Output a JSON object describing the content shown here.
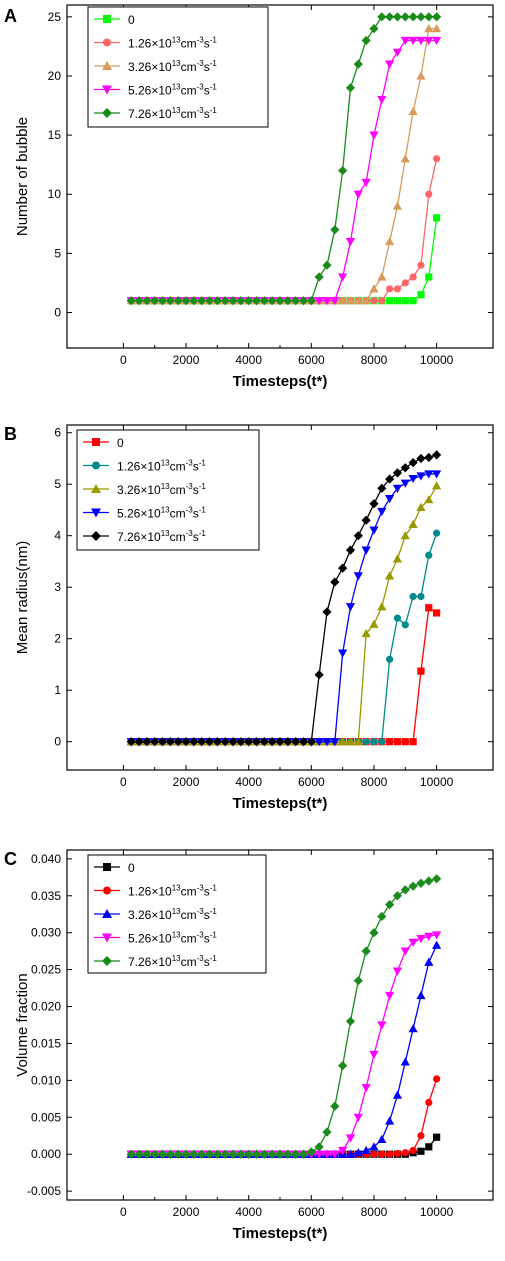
{
  "legend_labels": [
    {
      "base": "0",
      "sci": false
    },
    {
      "base": "1.26",
      "sci": true,
      "exp": "13",
      "unit1": "cm",
      "exp2": "-3",
      "unit2": "s",
      "exp3": "-1"
    },
    {
      "base": "3.26",
      "sci": true,
      "exp": "13",
      "unit1": "cm",
      "exp2": "-3",
      "unit2": "s",
      "exp3": "-1"
    },
    {
      "base": "5.26",
      "sci": true,
      "exp": "13",
      "unit1": "cm",
      "exp2": "-3",
      "unit2": "s",
      "exp3": "-1"
    },
    {
      "base": "7.26",
      "sci": true,
      "exp": "13",
      "unit1": "cm",
      "exp2": "-3",
      "unit2": "s",
      "exp3": "-1"
    }
  ],
  "times_symbol": "×",
  "chart_data": [
    {
      "panel_label": "A",
      "type": "line",
      "xlabel": "Timesteps(t*)",
      "ylabel": "Number of bubble",
      "xlim": [
        -1800,
        11800
      ],
      "ylim": [
        -3,
        26
      ],
      "xticks": [
        "0",
        "2000",
        "4000",
        "6000",
        "8000",
        "10000"
      ],
      "xtick_values": [
        0,
        2000,
        4000,
        6000,
        8000,
        10000
      ],
      "yticks": [
        "0",
        "5",
        "10",
        "15",
        "20",
        "25"
      ],
      "ytick_values": [
        0,
        5,
        10,
        15,
        20,
        25
      ],
      "legend_position": "top-left",
      "x": [
        250,
        500,
        750,
        1000,
        1250,
        1500,
        1750,
        2000,
        2250,
        2500,
        2750,
        3000,
        3250,
        3500,
        3750,
        4000,
        4250,
        4500,
        4750,
        5000,
        5250,
        5500,
        5750,
        6000,
        6250,
        6500,
        6750,
        7000,
        7250,
        7500,
        7750,
        8000,
        8250,
        8500,
        8750,
        9000,
        9250,
        9500,
        9750,
        10000
      ],
      "series": [
        {
          "legend_index": 0,
          "color": "#00ff00",
          "marker": "square",
          "values": [
            1,
            1,
            1,
            1,
            1,
            1,
            1,
            1,
            1,
            1,
            1,
            1,
            1,
            1,
            1,
            1,
            1,
            1,
            1,
            1,
            1,
            1,
            1,
            1,
            1,
            1,
            1,
            1,
            1,
            1,
            1,
            1,
            1,
            1,
            1,
            1,
            1,
            1.5,
            3,
            8
          ]
        },
        {
          "legend_index": 1,
          "color": "#ff6666",
          "marker": "circle",
          "values": [
            1,
            1,
            1,
            1,
            1,
            1,
            1,
            1,
            1,
            1,
            1,
            1,
            1,
            1,
            1,
            1,
            1,
            1,
            1,
            1,
            1,
            1,
            1,
            1,
            1,
            1,
            1,
            1,
            1,
            1,
            1,
            1,
            1,
            2,
            2,
            2.5,
            3,
            4,
            10,
            13
          ]
        },
        {
          "legend_index": 2,
          "color": "#d99a5c",
          "marker": "triangle-up",
          "values": [
            1,
            1,
            1,
            1,
            1,
            1,
            1,
            1,
            1,
            1,
            1,
            1,
            1,
            1,
            1,
            1,
            1,
            1,
            1,
            1,
            1,
            1,
            1,
            1,
            1,
            1,
            1,
            1,
            1,
            1,
            1,
            2,
            3,
            6,
            9,
            13,
            17,
            20,
            24,
            24
          ]
        },
        {
          "legend_index": 3,
          "color": "#ff00ff",
          "marker": "triangle-down",
          "values": [
            1,
            1,
            1,
            1,
            1,
            1,
            1,
            1,
            1,
            1,
            1,
            1,
            1,
            1,
            1,
            1,
            1,
            1,
            1,
            1,
            1,
            1,
            1,
            1,
            1,
            1,
            1,
            3,
            6,
            10,
            11,
            15,
            18,
            21,
            22,
            23,
            23,
            23,
            23,
            23
          ]
        },
        {
          "legend_index": 4,
          "color": "#1a8a1a",
          "marker": "diamond",
          "values": [
            1,
            1,
            1,
            1,
            1,
            1,
            1,
            1,
            1,
            1,
            1,
            1,
            1,
            1,
            1,
            1,
            1,
            1,
            1,
            1,
            1,
            1,
            1,
            1,
            3,
            4,
            7,
            12,
            19,
            21,
            23,
            24,
            25,
            25,
            25,
            25,
            25,
            25,
            25,
            25
          ]
        }
      ]
    },
    {
      "panel_label": "B",
      "type": "line",
      "xlabel": "Timesteps(t*)",
      "ylabel": "Mean radius(nm)",
      "xlim": [
        -1800,
        11800
      ],
      "ylim": [
        -0.55,
        6.15
      ],
      "xticks": [
        "0",
        "2000",
        "4000",
        "6000",
        "8000",
        "10000"
      ],
      "xtick_values": [
        0,
        2000,
        4000,
        6000,
        8000,
        10000
      ],
      "yticks": [
        "0",
        "1",
        "2",
        "3",
        "4",
        "5",
        "6"
      ],
      "ytick_values": [
        0,
        1,
        2,
        3,
        4,
        5,
        6
      ],
      "legend_position": "top-left",
      "x": [
        250,
        500,
        750,
        1000,
        1250,
        1500,
        1750,
        2000,
        2250,
        2500,
        2750,
        3000,
        3250,
        3500,
        3750,
        4000,
        4250,
        4500,
        4750,
        5000,
        5250,
        5500,
        5750,
        6000,
        6250,
        6500,
        6750,
        7000,
        7250,
        7500,
        7750,
        8000,
        8250,
        8500,
        8750,
        9000,
        9250,
        9500,
        9750,
        10000
      ],
      "series": [
        {
          "legend_index": 0,
          "color": "#ff0000",
          "marker": "square",
          "values": [
            0,
            0,
            0,
            0,
            0,
            0,
            0,
            0,
            0,
            0,
            0,
            0,
            0,
            0,
            0,
            0,
            0,
            0,
            0,
            0,
            0,
            0,
            0,
            0,
            0,
            0,
            0,
            0,
            0,
            0,
            0,
            0,
            0,
            0,
            0,
            0,
            0,
            1.37,
            2.6,
            2.5
          ]
        },
        {
          "legend_index": 1,
          "color": "#008b8b",
          "marker": "circle",
          "values": [
            0,
            0,
            0,
            0,
            0,
            0,
            0,
            0,
            0,
            0,
            0,
            0,
            0,
            0,
            0,
            0,
            0,
            0,
            0,
            0,
            0,
            0,
            0,
            0,
            0,
            0,
            0,
            0,
            0,
            0,
            0,
            0,
            0,
            1.6,
            2.4,
            2.27,
            2.82,
            2.82,
            3.62,
            4.05
          ]
        },
        {
          "legend_index": 2,
          "color": "#999900",
          "marker": "triangle-up",
          "values": [
            0,
            0,
            0,
            0,
            0,
            0,
            0,
            0,
            0,
            0,
            0,
            0,
            0,
            0,
            0,
            0,
            0,
            0,
            0,
            0,
            0,
            0,
            0,
            0,
            0,
            0,
            0,
            0,
            0,
            0,
            2.1,
            2.28,
            2.62,
            3.22,
            3.55,
            4.0,
            4.22,
            4.55,
            4.7,
            4.97
          ]
        },
        {
          "legend_index": 3,
          "color": "#0000ff",
          "marker": "triangle-down",
          "values": [
            0,
            0,
            0,
            0,
            0,
            0,
            0,
            0,
            0,
            0,
            0,
            0,
            0,
            0,
            0,
            0,
            0,
            0,
            0,
            0,
            0,
            0,
            0,
            0,
            0,
            0,
            0,
            1.72,
            2.62,
            3.22,
            3.72,
            4.11,
            4.47,
            4.72,
            4.92,
            5.02,
            5.11,
            5.16,
            5.2,
            5.2
          ]
        },
        {
          "legend_index": 4,
          "color": "#000000",
          "marker": "diamond",
          "values": [
            0,
            0,
            0,
            0,
            0,
            0,
            0,
            0,
            0,
            0,
            0,
            0,
            0,
            0,
            0,
            0,
            0,
            0,
            0,
            0,
            0,
            0,
            0,
            0,
            1.3,
            2.52,
            3.1,
            3.37,
            3.72,
            4.0,
            4.3,
            4.62,
            4.92,
            5.1,
            5.22,
            5.32,
            5.42,
            5.5,
            5.52,
            5.57
          ]
        }
      ]
    },
    {
      "panel_label": "C",
      "type": "line",
      "xlabel": "Timesteps(t*)",
      "ylabel": "Volume fraction",
      "xlim": [
        -1800,
        11800
      ],
      "ylim": [
        -0.0062,
        0.0412
      ],
      "xticks": [
        "0",
        "2000",
        "4000",
        "6000",
        "8000",
        "10000"
      ],
      "xtick_values": [
        0,
        2000,
        4000,
        6000,
        8000,
        10000
      ],
      "yticks": [
        "-0.005",
        "0.000",
        "0.005",
        "0.010",
        "0.015",
        "0.020",
        "0.025",
        "0.030",
        "0.035",
        "0.040"
      ],
      "ytick_values": [
        -0.005,
        0,
        0.005,
        0.01,
        0.015,
        0.02,
        0.025,
        0.03,
        0.035,
        0.04
      ],
      "legend_position": "top-left",
      "x": [
        250,
        500,
        750,
        1000,
        1250,
        1500,
        1750,
        2000,
        2250,
        2500,
        2750,
        3000,
        3250,
        3500,
        3750,
        4000,
        4250,
        4500,
        4750,
        5000,
        5250,
        5500,
        5750,
        6000,
        6250,
        6500,
        6750,
        7000,
        7250,
        7500,
        7750,
        8000,
        8250,
        8500,
        8750,
        9000,
        9250,
        9500,
        9750,
        10000
      ],
      "series": [
        {
          "legend_index": 0,
          "color": "#000000",
          "marker": "square",
          "values": [
            0,
            0,
            0,
            0,
            0,
            0,
            0,
            0,
            0,
            0,
            0,
            0,
            0,
            0,
            0,
            0,
            0,
            0,
            0,
            0,
            0,
            0,
            0,
            0,
            0,
            0,
            0,
            0,
            0,
            0,
            0,
            0,
            0,
            0,
            0,
            0,
            0.0002,
            0.0004,
            0.001,
            0.0023
          ]
        },
        {
          "legend_index": 1,
          "color": "#ff0000",
          "marker": "circle",
          "values": [
            0,
            0,
            0,
            0,
            0,
            0,
            0,
            0,
            0,
            0,
            0,
            0,
            0,
            0,
            0,
            0,
            0,
            0,
            0,
            0,
            0,
            0,
            0,
            0,
            0,
            0,
            0,
            0,
            0,
            0,
            0,
            0,
            0,
            0,
            0.0001,
            0.0002,
            0.0005,
            0.0025,
            0.007,
            0.0102
          ]
        },
        {
          "legend_index": 2,
          "color": "#0000ff",
          "marker": "triangle-up",
          "values": [
            0,
            0,
            0,
            0,
            0,
            0,
            0,
            0,
            0,
            0,
            0,
            0,
            0,
            0,
            0,
            0,
            0,
            0,
            0,
            0,
            0,
            0,
            0,
            0,
            0,
            0,
            0,
            0,
            0,
            0.0002,
            0.0005,
            0.001,
            0.002,
            0.0045,
            0.008,
            0.0125,
            0.017,
            0.0215,
            0.026,
            0.0283
          ]
        },
        {
          "legend_index": 3,
          "color": "#ff00ff",
          "marker": "triangle-down",
          "values": [
            0,
            0,
            0,
            0,
            0,
            0,
            0,
            0,
            0,
            0,
            0,
            0,
            0,
            0,
            0,
            0,
            0,
            0,
            0,
            0,
            0,
            0,
            0,
            0,
            0,
            0,
            0,
            0.0005,
            0.0022,
            0.005,
            0.009,
            0.0135,
            0.0175,
            0.0215,
            0.0248,
            0.0275,
            0.0287,
            0.0292,
            0.0295,
            0.0297
          ]
        },
        {
          "legend_index": 4,
          "color": "#1a8a1a",
          "marker": "diamond",
          "values": [
            0,
            0,
            0,
            0,
            0,
            0,
            0,
            0,
            0,
            0,
            0,
            0,
            0,
            0,
            0,
            0,
            0,
            0,
            0,
            0,
            0,
            0,
            0,
            0.0003,
            0.001,
            0.003,
            0.0065,
            0.012,
            0.018,
            0.0235,
            0.0275,
            0.03,
            0.0322,
            0.0338,
            0.035,
            0.0358,
            0.0363,
            0.0367,
            0.037,
            0.0373
          ]
        }
      ]
    }
  ]
}
